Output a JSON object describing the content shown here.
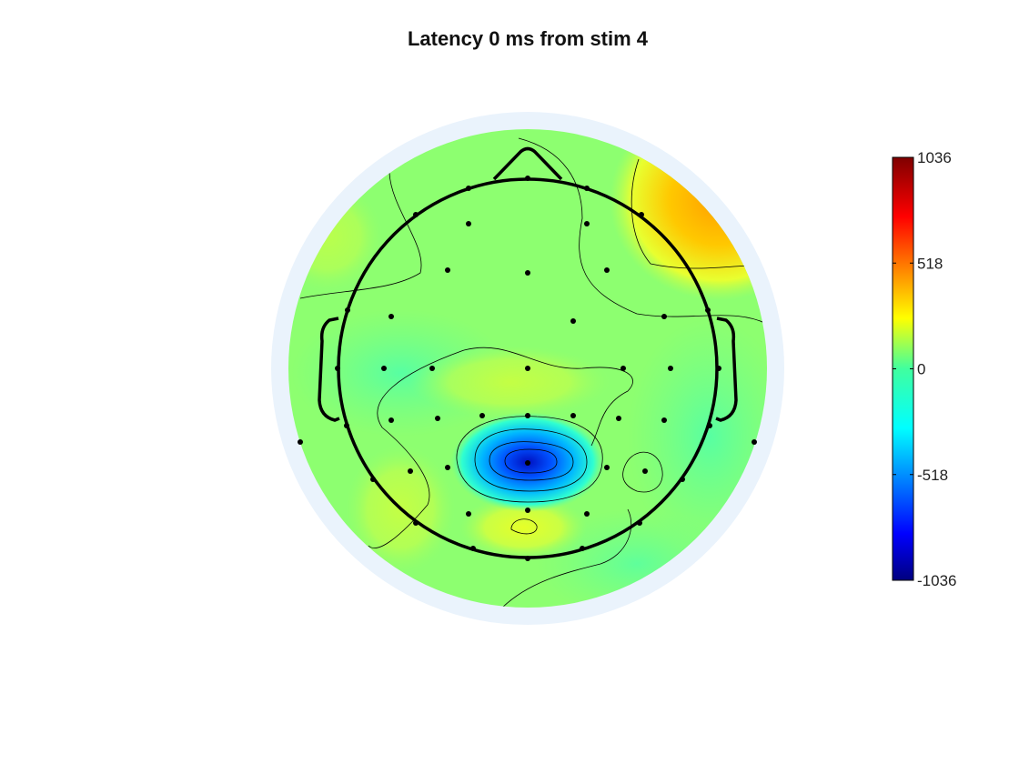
{
  "chart_data": {
    "type": "heatmap",
    "title": "Latency 0 ms from stim 4",
    "colormap": "jet",
    "colorbar": {
      "min": -1036,
      "max": 1036,
      "ticks": [
        1036,
        518,
        0,
        -518,
        -1036
      ],
      "tick_labels": [
        "1036",
        "518",
        "0",
        "-518",
        "-1036"
      ]
    },
    "head_outline": true,
    "electrode_count": 49
  },
  "colors": {
    "background_ring": "#eaf3fc",
    "outline": "#000000"
  }
}
